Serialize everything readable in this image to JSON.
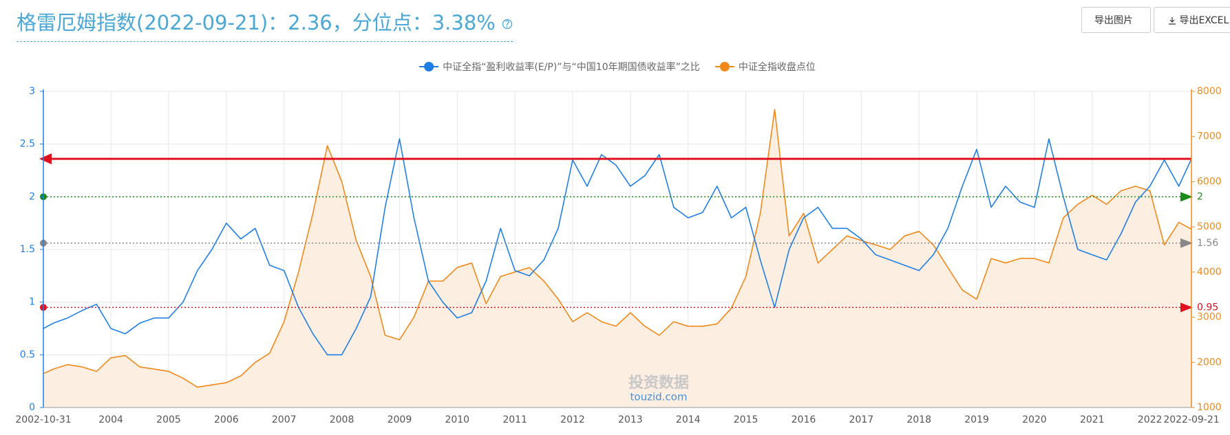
{
  "header": {
    "title": "格雷厄姆指数(2022-09-21)：2.36，分位点：3.38%",
    "buttons": [
      "导出图片",
      "导出EXCEL"
    ]
  },
  "chart_data": {
    "type": "line",
    "watermark": [
      "投资数据",
      "touzid.com"
    ],
    "x": [
      2002.83,
      2003.0,
      2003.25,
      2003.5,
      2003.75,
      2004.0,
      2004.25,
      2004.5,
      2004.75,
      2005.0,
      2005.25,
      2005.5,
      2005.75,
      2006.0,
      2006.25,
      2006.5,
      2006.75,
      2007.0,
      2007.25,
      2007.5,
      2007.75,
      2008.0,
      2008.25,
      2008.5,
      2008.75,
      2009.0,
      2009.25,
      2009.5,
      2009.75,
      2010.0,
      2010.25,
      2010.5,
      2010.75,
      2011.0,
      2011.25,
      2011.5,
      2011.75,
      2012.0,
      2012.25,
      2012.5,
      2012.75,
      2013.0,
      2013.25,
      2013.5,
      2013.75,
      2014.0,
      2014.25,
      2014.5,
      2014.75,
      2015.0,
      2015.25,
      2015.5,
      2015.75,
      2016.0,
      2016.25,
      2016.5,
      2016.75,
      2017.0,
      2017.25,
      2017.5,
      2017.75,
      2018.0,
      2018.25,
      2018.5,
      2018.75,
      2019.0,
      2019.25,
      2019.5,
      2019.75,
      2020.0,
      2020.25,
      2020.5,
      2020.75,
      2021.0,
      2021.25,
      2021.5,
      2021.75,
      2022.0,
      2022.25,
      2022.5,
      2022.72
    ],
    "series": [
      {
        "name": "中证全指“盈利收益率(E/P)”与“中国10年期国债收益率”之比",
        "color": "#1f7fe6",
        "axis": "y",
        "area": false,
        "values": [
          0.75,
          0.8,
          0.85,
          0.92,
          0.98,
          0.75,
          0.7,
          0.8,
          0.85,
          0.85,
          1.0,
          1.3,
          1.5,
          1.75,
          1.6,
          1.7,
          1.35,
          1.3,
          0.95,
          0.7,
          0.5,
          0.5,
          0.75,
          1.05,
          1.9,
          2.55,
          1.8,
          1.2,
          1.0,
          0.85,
          0.9,
          1.2,
          1.7,
          1.3,
          1.25,
          1.4,
          1.7,
          2.35,
          2.1,
          2.4,
          2.3,
          2.1,
          2.2,
          2.4,
          1.9,
          1.8,
          1.85,
          2.1,
          1.8,
          1.9,
          1.4,
          0.95,
          1.5,
          1.8,
          1.9,
          1.7,
          1.7,
          1.6,
          1.45,
          1.4,
          1.35,
          1.3,
          1.45,
          1.7,
          2.1,
          2.45,
          1.9,
          2.1,
          1.95,
          1.9,
          2.55,
          2.0,
          1.5,
          1.45,
          1.4,
          1.65,
          1.95,
          2.1,
          2.35,
          2.1,
          2.36
        ]
      },
      {
        "name": "中证全指收盘点位",
        "color": "#f0891a",
        "axis": "y2",
        "area": true,
        "area_color": "#fdeee2",
        "values": [
          1750,
          1850,
          1950,
          1900,
          1800,
          2100,
          2150,
          1900,
          1850,
          1800,
          1650,
          1450,
          1500,
          1550,
          1700,
          2000,
          2200,
          2900,
          4000,
          5300,
          6800,
          6000,
          4700,
          3900,
          2600,
          2500,
          3000,
          3800,
          3800,
          4100,
          4200,
          3300,
          3900,
          4000,
          4100,
          3800,
          3400,
          2900,
          3100,
          2900,
          2800,
          3100,
          2800,
          2600,
          2900,
          2800,
          2800,
          2850,
          3200,
          3900,
          5300,
          7600,
          4800,
          5300,
          4200,
          4500,
          4800,
          4700,
          4600,
          4500,
          4800,
          4900,
          4600,
          4100,
          3600,
          3400,
          4300,
          4200,
          4300,
          4300,
          4200,
          5200,
          5500,
          5700,
          5500,
          5800,
          5900,
          5800,
          4600,
          5100,
          4950
        ]
      }
    ],
    "xlim": [
      2002.83,
      2022.72
    ],
    "xticks": [
      {
        "value": 2002.83,
        "label": "2002-10-31"
      },
      2004,
      2005,
      2006,
      2007,
      2008,
      2009,
      2010,
      2011,
      2012,
      2013,
      2014,
      2015,
      2016,
      2017,
      2018,
      2019,
      2020,
      2021,
      2022,
      {
        "value": 2022.72,
        "label": "2022-09-21"
      }
    ],
    "ylim": [
      0,
      3
    ],
    "yticks": [
      0,
      0.5,
      1,
      1.5,
      2,
      2.5,
      3
    ],
    "y_color": "#1f7fe6",
    "y2lim": [
      1000,
      8000
    ],
    "y2ticks": [
      1000,
      2000,
      3000,
      4000,
      5000,
      6000,
      7000,
      8000
    ],
    "y2_color": "#f0891a",
    "grid": true,
    "reference_lines": [
      {
        "value": 2.36,
        "color": "#e0101e",
        "style": "solid",
        "label_shown": false
      },
      {
        "value": 2,
        "color": "#1a8a1a",
        "style": "dotted",
        "label_shown": true
      },
      {
        "value": 1.56,
        "color": "#888888",
        "style": "dotted",
        "label_shown": true
      },
      {
        "value": 0.95,
        "color": "#e0101e",
        "style": "dotted",
        "label_shown": true
      }
    ]
  }
}
